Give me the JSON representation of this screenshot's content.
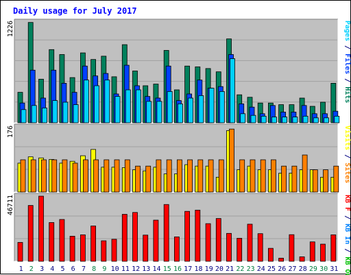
{
  "chart_data": {
    "type": "bar",
    "title": "Daily usage for July 2017",
    "categories": [
      "1",
      "2",
      "3",
      "4",
      "5",
      "6",
      "7",
      "8",
      "9",
      "10",
      "11",
      "12",
      "13",
      "14",
      "15",
      "16",
      "17",
      "18",
      "19",
      "20",
      "21",
      "22",
      "23",
      "24",
      "25",
      "26",
      "27",
      "28",
      "29",
      "30",
      "31"
    ],
    "weekend_days": [
      "2",
      "8",
      "9",
      "15",
      "16",
      "22",
      "23",
      "29",
      "30"
    ],
    "colors": {
      "hits": "#00805c",
      "files": "#0040ff",
      "pages": "#00d0ff",
      "sites": "#ff8000",
      "visits": "#ffff00",
      "kbf": "#ff0000",
      "kbin": "#0080ff",
      "kbout": "#00c000",
      "title": "#0000ff",
      "weekday_label": "#000080",
      "weekend_label": "#008040",
      "panel_bg": "#c0c0c0"
    },
    "panels": [
      {
        "id": "hits",
        "ymax_label": "1226",
        "ymax": 1226,
        "right_labels": [
          {
            "text": "Pages",
            "color": "#00d0ff"
          },
          {
            "text": " / ",
            "color": "#000080"
          },
          {
            "text": "Files",
            "color": "#0040ff"
          },
          {
            "text": " / ",
            "color": "#000080"
          },
          {
            "text": "Hits",
            "color": "#00805c"
          }
        ],
        "series": [
          {
            "name": "Hits",
            "values": [
              370,
              1220,
              530,
              890,
              830,
              550,
              850,
              770,
              810,
              560,
              950,
              630,
              450,
              470,
              880,
              400,
              690,
              680,
              660,
              620,
              1020,
              340,
              310,
              240,
              240,
              220,
              220,
              300,
              200,
              250,
              480
            ]
          },
          {
            "name": "Files",
            "values": [
              240,
              640,
              300,
              640,
              480,
              370,
              690,
              570,
              600,
              350,
              700,
              450,
              320,
              300,
              690,
              270,
              350,
              520,
              420,
              440,
              830,
              230,
              190,
              110,
              210,
              130,
              130,
              210,
              110,
              110,
              140
            ]
          },
          {
            "name": "Pages",
            "values": [
              160,
              210,
              180,
              270,
              250,
              220,
              520,
              450,
              520,
              320,
              400,
              400,
              260,
              260,
              380,
              230,
              300,
              330,
              420,
              380,
              780,
              110,
              90,
              80,
              70,
              70,
              70,
              80,
              60,
              60,
              80
            ]
          }
        ]
      },
      {
        "id": "sites",
        "ymax_label": "176",
        "ymax": 176,
        "right_labels": [
          {
            "text": "Visits",
            "color": "#ffff00"
          },
          {
            "text": " / ",
            "color": "#000080"
          },
          {
            "text": "Sites",
            "color": "#ff8000"
          }
        ],
        "series": [
          {
            "name": "Visits",
            "values": [
              78,
              95,
              92,
              88,
              78,
              83,
              98,
              115,
              67,
              67,
              66,
              60,
              57,
              67,
              49,
              49,
              74,
              70,
              70,
              40,
              166,
              60,
              70,
              60,
              60,
              51,
              51,
              60,
              60,
              40,
              40
            ]
          },
          {
            "name": "Sites",
            "values": [
              87,
              87,
              87,
              87,
              87,
              78,
              87,
              87,
              87,
              87,
              87,
              70,
              70,
              87,
              87,
              87,
              87,
              87,
              87,
              87,
              170,
              87,
              87,
              87,
              87,
              70,
              70,
              100,
              60,
              60,
              70
            ]
          }
        ]
      },
      {
        "id": "kbytes",
        "ymax_label": "46711",
        "ymax": 46711,
        "right_labels": [
          {
            "text": "KB F",
            "color": "#ff0000"
          },
          {
            "text": " / ",
            "color": "#000080"
          },
          {
            "text": "KB In",
            "color": "#0080ff"
          },
          {
            "text": " / ",
            "color": "#000080"
          },
          {
            "text": "KB Out",
            "color": "#00c000"
          }
        ],
        "series": [
          {
            "name": "KB F",
            "values": [
              13500,
              40000,
              47000,
              27800,
              30000,
              18000,
              19000,
              25300,
              14700,
              15800,
              33700,
              35000,
              18800,
              29500,
              40700,
              17500,
              35800,
              36700,
              27000,
              30700,
              20000,
              16500,
              26600,
              19800,
              9300,
              2200,
              19100,
              3200,
              13900,
              12300,
              19000
            ]
          }
        ]
      }
    ]
  }
}
